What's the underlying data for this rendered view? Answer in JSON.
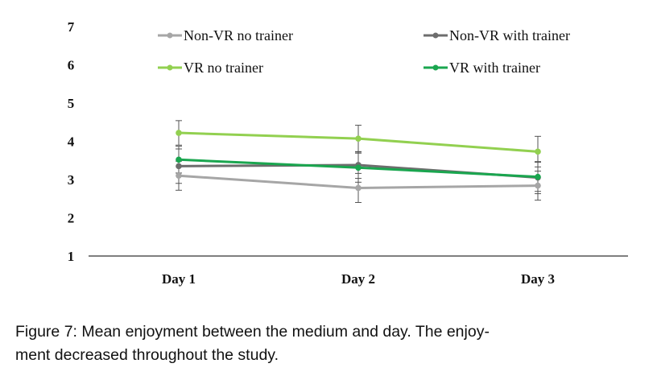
{
  "chart_data": {
    "type": "line",
    "categories": [
      "Day 1",
      "Day 2",
      "Day 3"
    ],
    "ylim": [
      1,
      7
    ],
    "yticks": [
      1,
      2,
      3,
      4,
      5,
      6,
      7
    ],
    "grid": false,
    "legend_position": "top",
    "series": [
      {
        "name": "Non-VR no trainer",
        "color": "#a6a6a6",
        "values": [
          3.1,
          2.78,
          2.84
        ],
        "error": [
          0.38,
          0.38,
          0.38
        ]
      },
      {
        "name": "Non-VR with trainer",
        "color": "#6d6d6d",
        "values": [
          3.35,
          3.38,
          3.05
        ],
        "error": [
          0.45,
          0.35,
          0.42
        ]
      },
      {
        "name": "VR no trainer",
        "color": "#92d050",
        "values": [
          4.22,
          4.07,
          3.73
        ],
        "error": [
          0.32,
          0.35,
          0.4
        ]
      },
      {
        "name": "VR with trainer",
        "color": "#1aa64f",
        "values": [
          3.52,
          3.31,
          3.07
        ],
        "error": [
          0.35,
          0.38,
          0.38
        ]
      }
    ]
  },
  "caption": {
    "line1": "Figure 7: Mean enjoyment between the medium and day. The enjoy-",
    "line2": "ment decreased throughout the study."
  }
}
